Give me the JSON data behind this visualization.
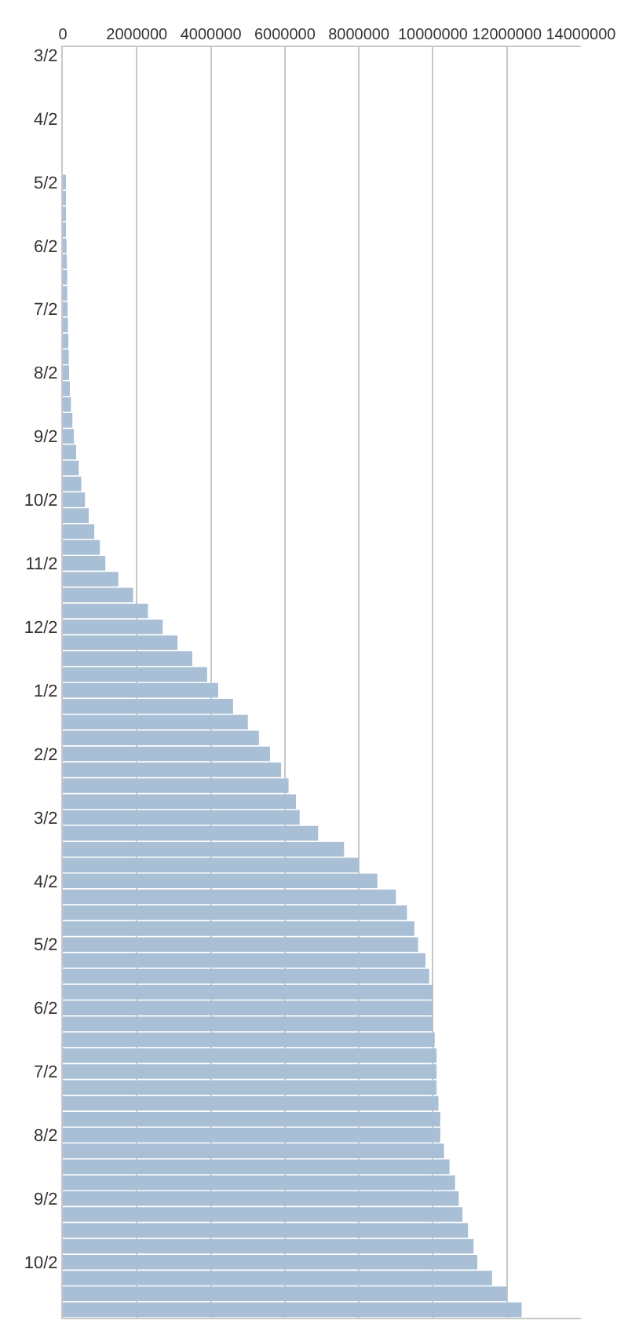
{
  "chart_data": {
    "type": "bar",
    "orientation": "horizontal",
    "categories": [
      "3/2",
      null,
      null,
      null,
      "4/2",
      null,
      null,
      null,
      "5/2",
      null,
      null,
      null,
      "6/2",
      null,
      null,
      null,
      "7/2",
      null,
      null,
      null,
      "8/2",
      null,
      null,
      null,
      "9/2",
      null,
      null,
      null,
      "10/2",
      null,
      null,
      null,
      "11/2",
      null,
      null,
      null,
      "12/2",
      null,
      null,
      null,
      "1/2",
      null,
      null,
      null,
      "2/2",
      null,
      null,
      null,
      "3/2",
      null,
      null,
      null,
      "4/2",
      null,
      null,
      null,
      "5/2",
      null,
      null,
      null,
      "6/2",
      null,
      null,
      null,
      "7/2",
      null,
      null,
      null,
      "8/2",
      null,
      null,
      null,
      "9/2",
      null,
      null,
      null,
      "10/2",
      null,
      null,
      null
    ],
    "values": [
      0,
      0,
      0,
      0,
      0,
      0,
      0,
      0,
      50000,
      60000,
      70000,
      80000,
      100000,
      110000,
      120000,
      120000,
      130000,
      140000,
      150000,
      160000,
      170000,
      190000,
      220000,
      260000,
      300000,
      360000,
      430000,
      500000,
      600000,
      700000,
      850000,
      1000000,
      1150000,
      1500000,
      1900000,
      2300000,
      2700000,
      3100000,
      3500000,
      3900000,
      4200000,
      4600000,
      5000000,
      5300000,
      5600000,
      5900000,
      6100000,
      6300000,
      6400000,
      6900000,
      7600000,
      8000000,
      8500000,
      9000000,
      9300000,
      9500000,
      9600000,
      9800000,
      9900000,
      10000000,
      10000000,
      10000000,
      10050000,
      10100000,
      10100000,
      10100000,
      10150000,
      10200000,
      10200000,
      10300000,
      10450000,
      10600000,
      10700000,
      10800000,
      10950000,
      11100000,
      11200000,
      11600000,
      12000000,
      12400000
    ],
    "color": "#a9bfd6",
    "xlim": [
      0,
      14000000
    ],
    "xticks": [
      0,
      2000000,
      4000000,
      6000000,
      8000000,
      10000000,
      12000000,
      14000000
    ],
    "grid": "x"
  }
}
